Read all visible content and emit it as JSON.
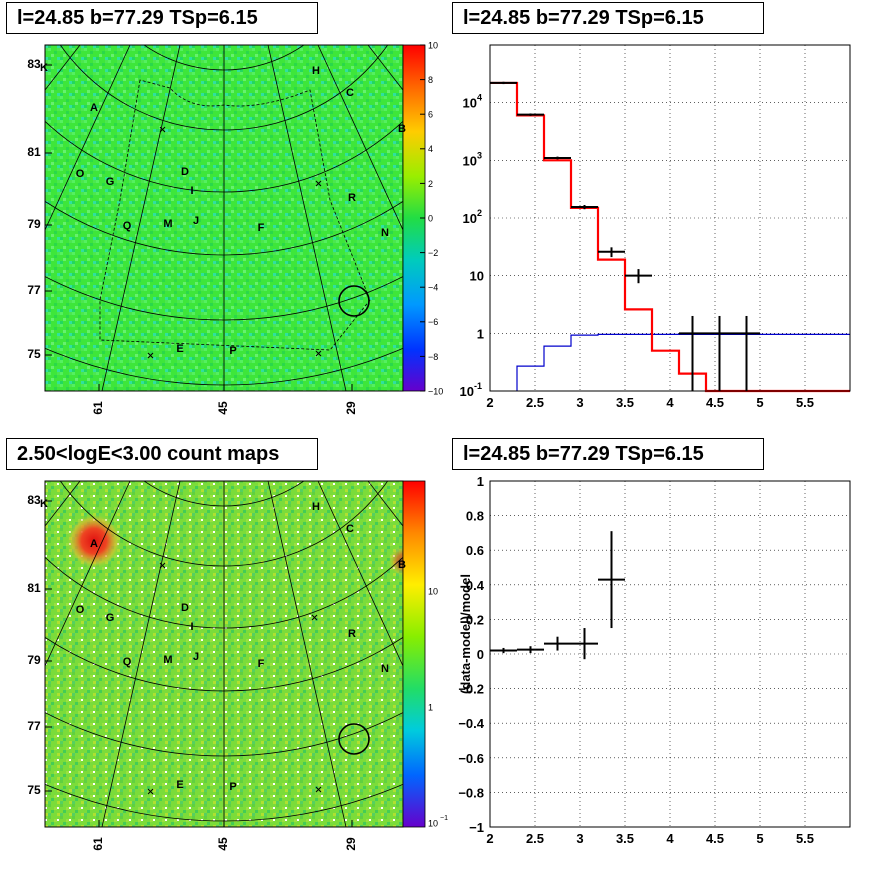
{
  "titles": {
    "tl": "l=24.85 b=77.29 TSp=6.15",
    "tr": "l=24.85 b=77.29 TSp=6.15",
    "bl": "2.50<logE<3.00 count maps",
    "br": "l=24.85 b=77.29 TSp=6.15"
  },
  "colors": {
    "map_bg_residual": "#33e633",
    "map_bg_counts": "#66dd33",
    "hot_spot": "#ee2222",
    "data": "#000000",
    "model": "#ff0000",
    "background_model": "#0000cc"
  },
  "map": {
    "x_ticks": [
      "61",
      "45",
      "29"
    ],
    "y_ticks": [
      "83",
      "81",
      "79",
      "77",
      "75"
    ],
    "sources": [
      {
        "label": "K",
        "name": "source-label-K"
      },
      {
        "label": "H",
        "name": "source-label-H"
      },
      {
        "label": "A",
        "name": "source-label-A"
      },
      {
        "label": "C",
        "name": "source-label-C"
      },
      {
        "label": "B",
        "name": "source-label-B"
      },
      {
        "label": "O",
        "name": "source-label-O"
      },
      {
        "label": "G",
        "name": "source-label-G"
      },
      {
        "label": "D",
        "name": "source-label-D"
      },
      {
        "label": "I",
        "name": "source-label-I"
      },
      {
        "label": "R",
        "name": "source-label-R"
      },
      {
        "label": "Q",
        "name": "source-label-Q"
      },
      {
        "label": "M",
        "name": "source-label-M"
      },
      {
        "label": "J",
        "name": "source-label-J"
      },
      {
        "label": "F",
        "name": "source-label-F"
      },
      {
        "label": "N",
        "name": "source-label-N"
      },
      {
        "label": "E",
        "name": "source-label-E"
      },
      {
        "label": "P",
        "name": "source-label-P"
      }
    ],
    "residual_scale": [
      "10",
      "8",
      "6",
      "4",
      "2",
      "0",
      "−2",
      "−4",
      "−6",
      "−8",
      "−10"
    ],
    "count_scale": [
      "10",
      "1",
      "10"
    ],
    "count_scale_exp": "−1"
  },
  "chart_data": [
    {
      "type": "line",
      "name": "spectrum",
      "xlim": [
        2,
        6
      ],
      "ylim": [
        0.1,
        100000
      ],
      "yscale": "log",
      "x_ticks": [
        "2",
        "2.5",
        "3",
        "3.5",
        "4",
        "4.5",
        "5",
        "5.5"
      ],
      "y_ticks": [
        "10^-1",
        "1",
        "10",
        "10^2",
        "10^3",
        "10^4"
      ],
      "grid": true,
      "series": [
        {
          "kind": "data",
          "points": [
            {
              "x": 2.15,
              "xerr": 0.15,
              "y": 22000,
              "ylo": 21000,
              "yhi": 23000
            },
            {
              "x": 2.45,
              "xerr": 0.15,
              "y": 6200,
              "ylo": 5900,
              "yhi": 6500
            },
            {
              "x": 2.75,
              "xerr": 0.15,
              "y": 1100,
              "ylo": 1040,
              "yhi": 1160
            },
            {
              "x": 3.05,
              "xerr": 0.15,
              "y": 155,
              "ylo": 142,
              "yhi": 168
            },
            {
              "x": 3.35,
              "xerr": 0.15,
              "y": 26,
              "ylo": 21,
              "yhi": 31
            },
            {
              "x": 3.65,
              "xerr": 0.15,
              "y": 10,
              "ylo": 7.4,
              "yhi": 13
            },
            {
              "x": 4.25,
              "xerr": 0.15,
              "y": 1,
              "ylo": 0.1,
              "yhi": 2
            },
            {
              "x": 4.55,
              "xerr": 0.15,
              "y": 1,
              "ylo": 0.1,
              "yhi": 2
            },
            {
              "x": 4.85,
              "xerr": 0.15,
              "y": 1,
              "ylo": 0.1,
              "yhi": 2
            }
          ]
        },
        {
          "kind": "model",
          "step_x": [
            2,
            2.3,
            2.6,
            2.9,
            3.2,
            3.5,
            3.8,
            4.1,
            4.4,
            6
          ],
          "step_y": [
            22000,
            6000,
            1000,
            150,
            19,
            2.6,
            0.5,
            0.2,
            0.1
          ]
        },
        {
          "kind": "background",
          "step_x": [
            2.3,
            2.6,
            2.9,
            3.2,
            6
          ],
          "step_y": [
            0.27,
            0.6,
            0.93,
            0.96
          ]
        }
      ]
    },
    {
      "type": "scatter",
      "name": "residuals",
      "xlim": [
        2,
        6
      ],
      "ylim": [
        -1,
        1
      ],
      "x_ticks": [
        "2",
        "2.5",
        "3",
        "3.5",
        "4",
        "4.5",
        "5",
        "5.5"
      ],
      "y_ticks": [
        "1",
        "0.8",
        "0.6",
        "0.4",
        "0.2",
        "0",
        "−0.2",
        "−0.4",
        "−0.6",
        "−0.8",
        "−1"
      ],
      "ylabel": "(data-model)/model",
      "grid": true,
      "points": [
        {
          "x": 2.15,
          "xerr": 0.15,
          "y": 0.02,
          "err": 0.015
        },
        {
          "x": 2.45,
          "xerr": 0.15,
          "y": 0.025,
          "err": 0.02
        },
        {
          "x": 2.75,
          "xerr": 0.15,
          "y": 0.06,
          "err": 0.04
        },
        {
          "x": 3.05,
          "xerr": 0.15,
          "y": 0.06,
          "err": 0.09
        },
        {
          "x": 3.35,
          "xerr": 0.15,
          "y": 0.43,
          "err": 0.28
        }
      ]
    }
  ]
}
